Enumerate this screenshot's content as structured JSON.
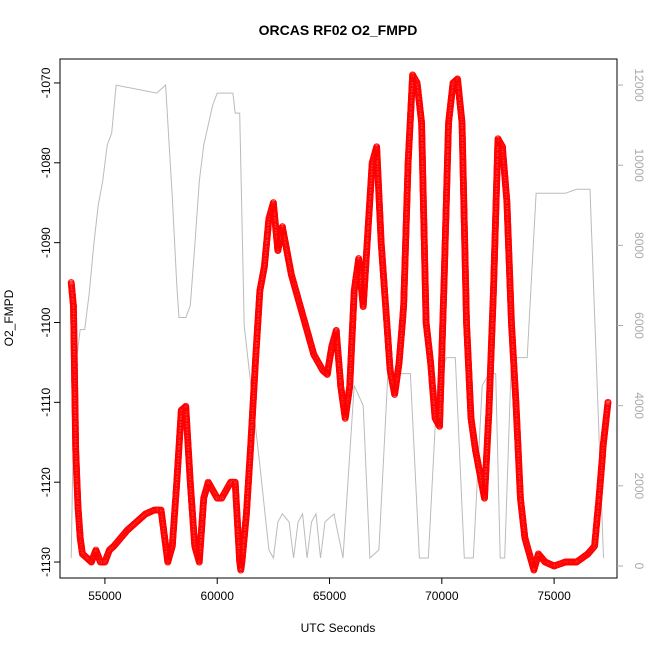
{
  "chart_data": {
    "type": "scatter",
    "title": "ORCAS RF02 O2_FMPD",
    "xlabel": "UTC Seconds",
    "ylabel": "O2_FMPD",
    "xlim": [
      53000,
      77800
    ],
    "ylim": [
      -1132,
      -1067
    ],
    "xticks": [
      55000,
      60000,
      65000,
      70000,
      75000
    ],
    "yticks": [
      -1130,
      -1120,
      -1110,
      -1100,
      -1090,
      -1080,
      -1070
    ],
    "right_axis": {
      "label": "",
      "ylim": [
        -300,
        12650
      ],
      "ticks": [
        0,
        2000,
        4000,
        6000,
        8000,
        10000,
        12000
      ],
      "color": "#aaaaaa"
    },
    "grid": false,
    "legend": "none",
    "series": [
      {
        "kind": "points",
        "color": "#ff0000",
        "marker": "open-circle",
        "x": [
          53500,
          53600,
          53700,
          53800,
          53900,
          54000,
          54200,
          54400,
          54600,
          54800,
          55000,
          55200,
          55400,
          55700,
          56000,
          56400,
          56800,
          57200,
          57500,
          57800,
          58000,
          58200,
          58400,
          58600,
          58800,
          59000,
          59200,
          59400,
          59600,
          59800,
          60000,
          60200,
          60400,
          60600,
          60800,
          61000,
          61050,
          61100,
          61300,
          61500,
          61700,
          61900,
          62100,
          62300,
          62500,
          62700,
          62900,
          63100,
          63300,
          63500,
          63700,
          63900,
          64100,
          64300,
          64500,
          64700,
          64900,
          65100,
          65300,
          65500,
          65700,
          65900,
          66100,
          66300,
          66500,
          66700,
          66900,
          67100,
          67300,
          67500,
          67700,
          67900,
          68100,
          68300,
          68500,
          68700,
          68900,
          69100,
          69300,
          69500,
          69700,
          69900,
          70100,
          70300,
          70500,
          70700,
          70900,
          71100,
          71300,
          71500,
          71700,
          71900,
          72100,
          72300,
          72500,
          72700,
          72900,
          73100,
          73300,
          73500,
          73700,
          73900,
          74100,
          74300,
          74600,
          75000,
          75500,
          76000,
          76500,
          76800,
          77000,
          77200,
          77400
        ],
        "y": [
          -1095,
          -1098,
          -1116,
          -1123,
          -1127,
          -1129,
          -1129.5,
          -1130,
          -1128.5,
          -1130,
          -1130,
          -1128.5,
          -1128,
          -1127,
          -1126,
          -1125,
          -1124,
          -1123.5,
          -1123.5,
          -1130,
          -1128,
          -1120,
          -1111,
          -1110.5,
          -1120,
          -1128,
          -1130,
          -1122,
          -1120,
          -1121,
          -1122,
          -1122,
          -1121,
          -1120,
          -1120,
          -1130,
          -1131,
          -1130,
          -1124,
          -1115,
          -1105,
          -1096,
          -1093,
          -1087,
          -1085,
          -1091,
          -1088,
          -1091,
          -1094,
          -1096,
          -1098,
          -1100,
          -1102,
          -1104,
          -1105,
          -1106,
          -1106.5,
          -1103,
          -1101,
          -1108,
          -1112,
          -1108,
          -1096,
          -1092,
          -1098,
          -1089,
          -1080,
          -1078,
          -1090,
          -1098,
          -1106,
          -1109,
          -1105,
          -1098,
          -1080,
          -1069,
          -1070,
          -1075,
          -1100,
          -1105,
          -1112,
          -1113,
          -1095,
          -1075,
          -1070,
          -1069.5,
          -1075,
          -1100,
          -1112,
          -1116,
          -1119,
          -1122,
          -1111,
          -1096,
          -1077,
          -1078,
          -1085,
          -1100,
          -1110,
          -1122,
          -1127,
          -1129,
          -1131,
          -1129,
          -1130,
          -1130.5,
          -1130,
          -1130,
          -1129,
          -1128,
          -1122,
          -1115,
          -1110
        ]
      },
      {
        "kind": "line",
        "axis": "right",
        "color": "#bbbbbb",
        "x": [
          53500,
          53650,
          53750,
          53900,
          54000,
          54100,
          54300,
          54500,
          54700,
          54900,
          55100,
          55300,
          55400,
          55500,
          57300,
          57700,
          58000,
          58200,
          58300,
          58400,
          58500,
          58600,
          58800,
          59000,
          59200,
          59400,
          59600,
          59800,
          60000,
          60700,
          60800,
          61000,
          61200,
          61500,
          61900,
          62300,
          62500,
          62700,
          62900,
          63200,
          63400,
          63600,
          63800,
          64000,
          64200,
          64400,
          64600,
          64800,
          65200,
          65600,
          66100,
          66500,
          66800,
          67200,
          67600,
          68100,
          68600,
          69000,
          69400,
          69800,
          70200,
          70600,
          71000,
          71400,
          71800,
          72100,
          72400,
          72600,
          72800,
          73100,
          73400,
          73600,
          73800,
          74200,
          74500,
          75500,
          76000,
          76600,
          77200
        ],
        "y": [
          200,
          5200,
          5200,
          5900,
          5900,
          5900,
          6800,
          8000,
          9000,
          9600,
          10500,
          10800,
          11400,
          12000,
          11800,
          12000,
          9200,
          7000,
          6200,
          6200,
          6200,
          6200,
          6500,
          8000,
          9600,
          10500,
          11000,
          11500,
          11800,
          11800,
          11300,
          11300,
          6000,
          4500,
          2500,
          400,
          200,
          1100,
          1300,
          1100,
          200,
          1100,
          1300,
          200,
          1100,
          1300,
          200,
          1100,
          1300,
          200,
          4500,
          4000,
          200,
          400,
          4800,
          4800,
          4800,
          200,
          200,
          4500,
          5200,
          5200,
          200,
          200,
          4500,
          4800,
          4800,
          200,
          200,
          5200,
          5200,
          5200,
          5200,
          9300,
          9300,
          9300,
          9400,
          9400,
          200
        ]
      }
    ]
  }
}
